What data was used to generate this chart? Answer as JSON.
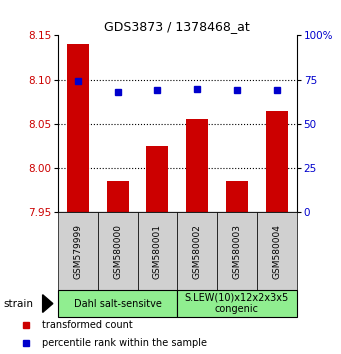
{
  "title": "GDS3873 / 1378468_at",
  "samples": [
    "GSM579999",
    "GSM580000",
    "GSM580001",
    "GSM580002",
    "GSM580003",
    "GSM580004"
  ],
  "red_values": [
    8.14,
    7.985,
    8.025,
    8.055,
    7.985,
    8.065
  ],
  "blue_values": [
    74,
    68,
    69,
    70,
    69,
    69
  ],
  "ymin": 7.95,
  "ymax": 8.15,
  "yticks": [
    7.95,
    8.0,
    8.05,
    8.1,
    8.15
  ],
  "y2min": 0,
  "y2max": 100,
  "y2ticks": [
    0,
    25,
    50,
    75,
    100
  ],
  "y2tick_labels": [
    "0",
    "25",
    "50",
    "75",
    "100%"
  ],
  "group_labels": [
    "Dahl salt-sensitve",
    "S.LEW(10)x12x2x3x5\ncongenic"
  ],
  "strain_label": "strain",
  "red_color": "#cc0000",
  "blue_color": "#0000cc",
  "legend_red": "transformed count",
  "legend_blue": "percentile rank within the sample",
  "bar_bottom": 7.95,
  "grid_lines": [
    8.0,
    8.05,
    8.1
  ],
  "fig_width": 3.41,
  "fig_height": 3.54,
  "dpi": 100
}
